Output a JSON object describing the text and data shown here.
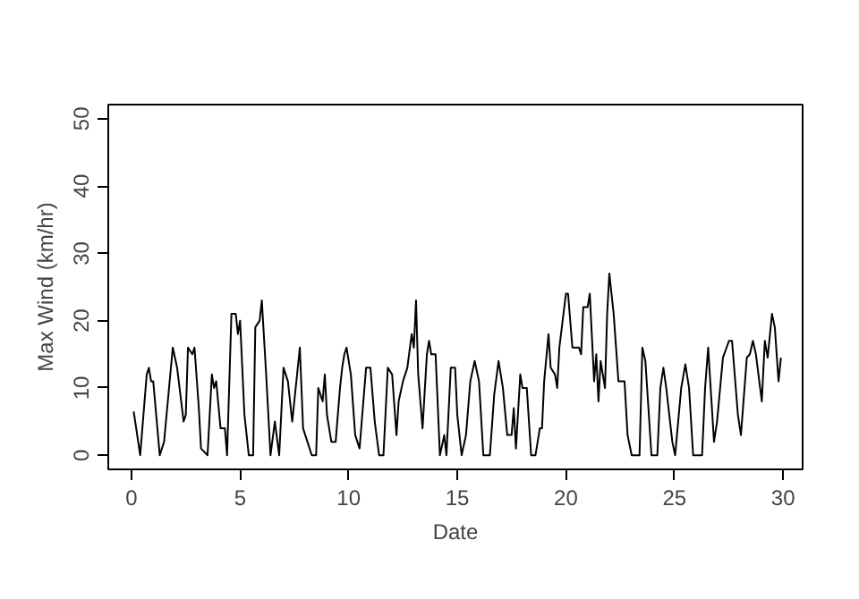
{
  "chart_data": {
    "type": "line",
    "xlabel": "Date",
    "ylabel": "Max Wind (km/hr)",
    "xlim": [
      -1.07,
      30.9
    ],
    "ylim": [
      -2.1,
      52.1
    ],
    "xticks": [
      0,
      5,
      10,
      15,
      20,
      25,
      30
    ],
    "yticks": [
      0,
      10,
      20,
      30,
      40,
      50
    ],
    "grid": false,
    "marker": "none",
    "line_style": "solid",
    "series": [
      {
        "color": "#000000",
        "x": [
          0.1,
          0.4,
          0.7,
          0.8,
          0.9,
          1.0,
          1.3,
          1.5,
          1.9,
          2.1,
          2.4,
          2.5,
          2.6,
          2.8,
          2.9,
          3.1,
          3.2,
          3.5,
          3.7,
          3.8,
          3.9,
          4.1,
          4.3,
          4.4,
          4.6,
          4.8,
          4.9,
          5.0,
          5.2,
          5.4,
          5.6,
          5.7,
          5.9,
          6.0,
          6.2,
          6.4,
          6.6,
          6.8,
          7.0,
          7.2,
          7.4,
          7.75,
          7.9,
          8.1,
          8.3,
          8.5,
          8.6,
          8.8,
          8.9,
          9.0,
          9.2,
          9.4,
          9.6,
          9.7,
          9.8,
          9.9,
          10.1,
          10.3,
          10.5,
          10.8,
          11.0,
          11.2,
          11.4,
          11.6,
          11.8,
          12.0,
          12.2,
          12.3,
          12.5,
          12.7,
          12.9,
          13.0,
          13.1,
          13.2,
          13.4,
          13.6,
          13.7,
          13.8,
          14.0,
          14.2,
          14.4,
          14.5,
          14.7,
          14.9,
          15.0,
          15.2,
          15.4,
          15.6,
          15.8,
          16.0,
          16.2,
          16.5,
          16.7,
          16.9,
          17.1,
          17.3,
          17.5,
          17.6,
          17.7,
          17.9,
          18.0,
          18.2,
          18.4,
          18.6,
          18.8,
          18.9,
          19.0,
          19.2,
          19.3,
          19.5,
          19.6,
          19.7,
          20.0,
          20.1,
          20.3,
          20.6,
          20.7,
          20.8,
          21.0,
          21.1,
          21.3,
          21.4,
          21.5,
          21.6,
          21.8,
          21.9,
          22.0,
          22.2,
          22.42,
          22.7,
          22.84,
          23.03,
          23.39,
          23.52,
          23.66,
          23.94,
          24.21,
          24.35,
          24.49,
          24.62,
          24.9,
          25.03,
          25.31,
          25.5,
          25.67,
          25.86,
          26.27,
          26.41,
          26.55,
          26.82,
          26.96,
          27.23,
          27.51,
          27.65,
          27.92,
          28.06,
          28.33,
          28.47,
          28.61,
          28.75,
          29.02,
          29.16,
          29.29,
          29.49,
          29.62,
          29.79,
          29.9
        ],
        "values": [
          6.5,
          0,
          12,
          13,
          11,
          11,
          0,
          2,
          16,
          13,
          5,
          6,
          16,
          15,
          16,
          7,
          1,
          0,
          12,
          10,
          11,
          4,
          4,
          0,
          21,
          21,
          18,
          20,
          6,
          0,
          0,
          19,
          20,
          23,
          12,
          0,
          5,
          0,
          13,
          11,
          5,
          16,
          4,
          2,
          0,
          0,
          10,
          8,
          12,
          6,
          2,
          2,
          10,
          13,
          15,
          16,
          12,
          3,
          1,
          13,
          13,
          5,
          0,
          0,
          13,
          12,
          3,
          8,
          11,
          13,
          18,
          16,
          23,
          12,
          4,
          15,
          17,
          15,
          15,
          0,
          3,
          0,
          13,
          13,
          6,
          0,
          3,
          11,
          14,
          11,
          0,
          0,
          9,
          14,
          10,
          3,
          3,
          7,
          1,
          12,
          10,
          10,
          0,
          0,
          4,
          4,
          11,
          18,
          13,
          12,
          10,
          16,
          24,
          24,
          16,
          16,
          15,
          22,
          22,
          24,
          11,
          15,
          8,
          14,
          10,
          21,
          27,
          21,
          11,
          11,
          3,
          0,
          0,
          16,
          14,
          0,
          0,
          10,
          13,
          10,
          2,
          0,
          10,
          13.5,
          10,
          0,
          0,
          10,
          16,
          2,
          5,
          14.5,
          17,
          17,
          6,
          3,
          14.5,
          15,
          17,
          15,
          8,
          17,
          14.5,
          21,
          19,
          11,
          14.5
        ]
      }
    ]
  }
}
